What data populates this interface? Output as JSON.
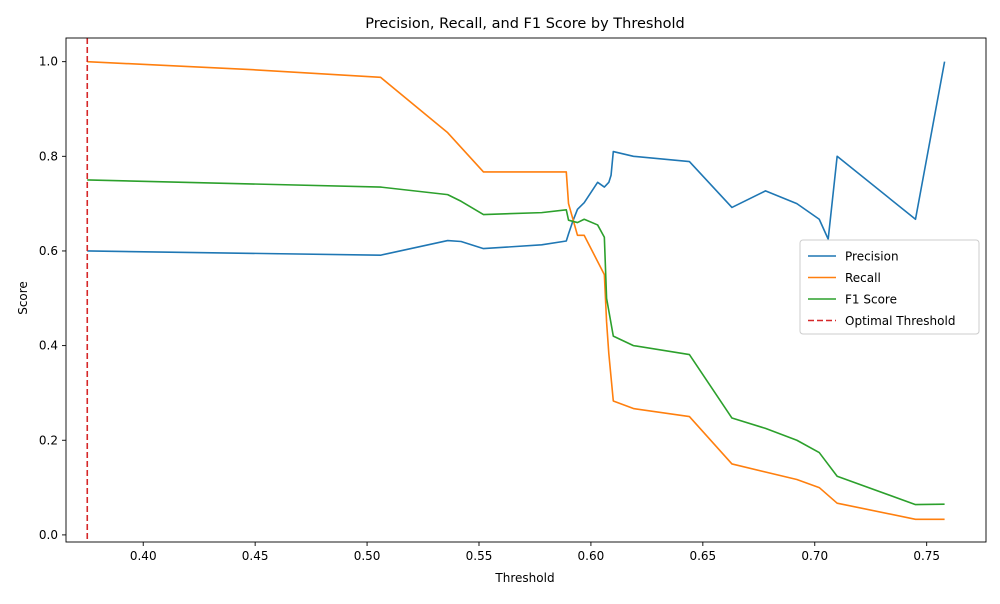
{
  "chart_data": {
    "type": "line",
    "title": "Precision, Recall, and F1 Score by Threshold",
    "xlabel": "Threshold",
    "ylabel": "Score",
    "xlim": [
      0.3655,
      0.7765
    ],
    "ylim": [
      -0.015,
      1.05
    ],
    "xticks": [
      0.4,
      0.45,
      0.5,
      0.55,
      0.6,
      0.65,
      0.7,
      0.75
    ],
    "xtick_labels": [
      "0.40",
      "0.45",
      "0.50",
      "0.55",
      "0.60",
      "0.65",
      "0.70",
      "0.75"
    ],
    "yticks": [
      0.0,
      0.2,
      0.4,
      0.6,
      0.8,
      1.0
    ],
    "ytick_labels": [
      "0.0",
      "0.2",
      "0.4",
      "0.6",
      "0.8",
      "1.0"
    ],
    "grid": false,
    "legend_position": "center-right",
    "series": [
      {
        "name": "Precision",
        "color": "#1f77b4",
        "style": "solid",
        "x": [
          0.375,
          0.506,
          0.536,
          0.542,
          0.552,
          0.578,
          0.589,
          0.59,
          0.592,
          0.594,
          0.597,
          0.603,
          0.606,
          0.608,
          0.609,
          0.61,
          0.619,
          0.644,
          0.663,
          0.678,
          0.692,
          0.702,
          0.706,
          0.71,
          0.745,
          0.758
        ],
        "y": [
          0.6,
          0.591,
          0.622,
          0.62,
          0.605,
          0.613,
          0.621,
          0.636,
          0.664,
          0.688,
          0.702,
          0.745,
          0.735,
          0.745,
          0.76,
          0.81,
          0.8,
          0.789,
          0.692,
          0.727,
          0.7,
          0.667,
          0.625,
          0.8,
          0.667,
          1.0
        ]
      },
      {
        "name": "Recall",
        "color": "#ff7f0e",
        "style": "solid",
        "x": [
          0.375,
          0.449,
          0.506,
          0.536,
          0.552,
          0.578,
          0.589,
          0.59,
          0.594,
          0.597,
          0.606,
          0.607,
          0.608,
          0.61,
          0.619,
          0.644,
          0.663,
          0.692,
          0.702,
          0.71,
          0.745,
          0.758
        ],
        "y": [
          1.0,
          0.983,
          0.967,
          0.85,
          0.767,
          0.767,
          0.767,
          0.7,
          0.633,
          0.633,
          0.55,
          0.45,
          0.383,
          0.283,
          0.267,
          0.25,
          0.15,
          0.117,
          0.1,
          0.067,
          0.033,
          0.033
        ],
        "x_note": null
      },
      {
        "name": "F1 Score",
        "color": "#2ca02c",
        "style": "solid",
        "x": [
          0.375,
          0.506,
          0.536,
          0.542,
          0.552,
          0.578,
          0.589,
          0.59,
          0.594,
          0.597,
          0.603,
          0.606,
          0.607,
          0.61,
          0.619,
          0.644,
          0.663,
          0.678,
          0.692,
          0.702,
          0.71,
          0.745,
          0.758
        ],
        "y": [
          0.75,
          0.735,
          0.719,
          0.705,
          0.677,
          0.681,
          0.687,
          0.665,
          0.66,
          0.667,
          0.655,
          0.629,
          0.5,
          0.42,
          0.4,
          0.381,
          0.247,
          0.225,
          0.2,
          0.174,
          0.124,
          0.064,
          0.065
        ]
      },
      {
        "name": "Optimal Threshold",
        "color": "#d62728",
        "style": "dashed",
        "vertical_x": 0.375
      }
    ]
  }
}
